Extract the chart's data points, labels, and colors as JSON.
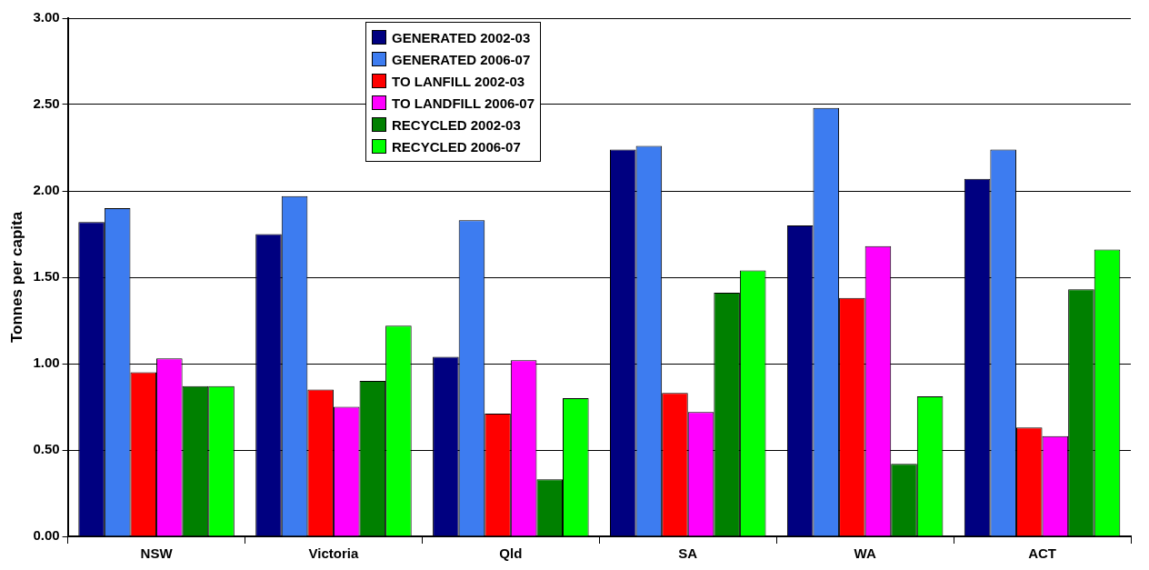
{
  "chart_data": {
    "type": "bar",
    "ylabel": "Tonnes per capita",
    "categories": [
      "NSW",
      "Victoria",
      "Qld",
      "SA",
      "WA",
      "ACT"
    ],
    "series": [
      {
        "name": "GENERATED 2002-03",
        "color": "#000080",
        "values": [
          1.82,
          1.75,
          1.04,
          2.24,
          1.8,
          2.07
        ]
      },
      {
        "name": "GENERATED 2006-07",
        "color": "#3d7cf0",
        "values": [
          1.9,
          1.97,
          1.83,
          2.26,
          2.48,
          2.24
        ]
      },
      {
        "name": "TO LANFILL 2002-03",
        "color": "#ff0000",
        "values": [
          0.95,
          0.85,
          0.71,
          0.83,
          1.38,
          0.63
        ]
      },
      {
        "name": "TO LANDFILL 2006-07",
        "color": "#ff00ff",
        "values": [
          1.03,
          0.75,
          1.02,
          0.72,
          1.68,
          0.58
        ]
      },
      {
        "name": "RECYCLED 2002-03",
        "color": "#008000",
        "values": [
          0.87,
          0.9,
          0.33,
          1.41,
          0.42,
          1.43
        ]
      },
      {
        "name": "RECYCLED 2006-07",
        "color": "#00ff00",
        "values": [
          0.87,
          1.22,
          0.8,
          1.54,
          0.81,
          1.66
        ]
      }
    ],
    "ylim": [
      0,
      3
    ],
    "yticks": [
      {
        "value": 0,
        "label": "0.00"
      },
      {
        "value": 0.5,
        "label": "0.50"
      },
      {
        "value": 1,
        "label": "1.00"
      },
      {
        "value": 1.5,
        "label": "1.50"
      },
      {
        "value": 2,
        "label": "2.00"
      },
      {
        "value": 2.5,
        "label": "2.50"
      },
      {
        "value": 3,
        "label": "3.00"
      }
    ],
    "grid": "y",
    "legend": "top"
  }
}
